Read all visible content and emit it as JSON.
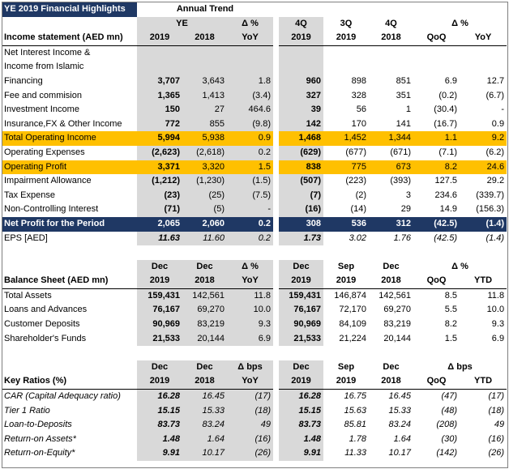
{
  "title": "YE 2019 Financial Highlights",
  "header": {
    "annual_trend": "Annual Trend",
    "ye": "YE",
    "delta_pct": "Δ %",
    "years": {
      "y2019": "2019",
      "y2018": "2018",
      "yoy": "YoY"
    },
    "quarters": {
      "q4": "4Q",
      "q3": "3Q",
      "qoq": "QoQ"
    }
  },
  "income": {
    "heading": "Income statement (AED mn)",
    "nii_line1": "Net Interest Income &",
    "nii_line2": "Income from Islamic",
    "rows": [
      {
        "label": "Financing",
        "ye2019": "3,707",
        "ye2018": "3,643",
        "yoy": "1.8",
        "q4_2019": "960",
        "q3_2019": "898",
        "q4_2018": "851",
        "qoq": "6.9",
        "yoy_q": "12.7"
      },
      {
        "label": "Fee and commision",
        "ye2019": "1,365",
        "ye2018": "1,413",
        "yoy": "(3.4)",
        "q4_2019": "327",
        "q3_2019": "328",
        "q4_2018": "351",
        "qoq": "(0.2)",
        "yoy_q": "(6.7)"
      },
      {
        "label": "Investment Income",
        "ye2019": "150",
        "ye2018": "27",
        "yoy": "464.6",
        "q4_2019": "39",
        "q3_2019": "56",
        "q4_2018": "1",
        "qoq": "(30.4)",
        "yoy_q": "-"
      },
      {
        "label": "Insurance,FX & Other Income",
        "ye2019": "772",
        "ye2018": "855",
        "yoy": "(9.8)",
        "q4_2019": "142",
        "q3_2019": "170",
        "q4_2018": "141",
        "qoq": "(16.7)",
        "yoy_q": "0.9"
      },
      {
        "label": "Total Operating Income",
        "ye2019": "5,994",
        "ye2018": "5,938",
        "yoy": "0.9",
        "q4_2019": "1,468",
        "q3_2019": "1,452",
        "q4_2018": "1,344",
        "qoq": "1.1",
        "yoy_q": "9.2"
      },
      {
        "label": "Operating Expenses",
        "ye2019": "(2,623)",
        "ye2018": "(2,618)",
        "yoy": "0.2",
        "q4_2019": "(629)",
        "q3_2019": "(677)",
        "q4_2018": "(671)",
        "qoq": "(7.1)",
        "yoy_q": "(6.2)"
      },
      {
        "label": "Operating Profit",
        "ye2019": "3,371",
        "ye2018": "3,320",
        "yoy": "1.5",
        "q4_2019": "838",
        "q3_2019": "775",
        "q4_2018": "673",
        "qoq": "8.2",
        "yoy_q": "24.6"
      },
      {
        "label": "Impairment Allowance",
        "ye2019": "(1,212)",
        "ye2018": "(1,230)",
        "yoy": "(1.5)",
        "q4_2019": "(507)",
        "q3_2019": "(223)",
        "q4_2018": "(393)",
        "qoq": "127.5",
        "yoy_q": "29.2"
      },
      {
        "label": "Tax Expense",
        "ye2019": "(23)",
        "ye2018": "(25)",
        "yoy": "(7.5)",
        "q4_2019": "(7)",
        "q3_2019": "(2)",
        "q4_2018": "3",
        "qoq": "234.6",
        "yoy_q": "(339.7)"
      },
      {
        "label": "Non-Controlling Interest",
        "ye2019": "(71)",
        "ye2018": "(5)",
        "yoy": "-",
        "q4_2019": "(16)",
        "q3_2019": "(14)",
        "q4_2018": "29",
        "qoq": "14.9",
        "yoy_q": "(156.3)"
      },
      {
        "label": "Net Profit for the Period",
        "ye2019": "2,065",
        "ye2018": "2,060",
        "yoy": "0.2",
        "q4_2019": "308",
        "q3_2019": "536",
        "q4_2018": "312",
        "qoq": "(42.5)",
        "yoy_q": "(1.4)"
      },
      {
        "label": "EPS [AED]",
        "ye2019": "11.63",
        "ye2018": "11.60",
        "yoy": "0.2",
        "q4_2019": "1.73",
        "q3_2019": "3.02",
        "q4_2018": "1.76",
        "qoq": "(42.5)",
        "yoy_q": "(1.4)"
      }
    ]
  },
  "balance": {
    "heading": "Balance Sheet (AED mn)",
    "h_dec": "Dec",
    "h_sep": "Sep",
    "h_delta": "Δ %",
    "h_2019": "2019",
    "h_2018": "2018",
    "h_yoy": "YoY",
    "h_qoq": "QoQ",
    "h_ytd": "YTD",
    "rows": [
      {
        "label": "Total Assets",
        "c1": "159,431",
        "c2": "142,561",
        "c3": "11.8",
        "c4": "159,431",
        "c5": "146,874",
        "c6": "142,561",
        "c7": "8.5",
        "c8": "11.8"
      },
      {
        "label": "Loans and Advances",
        "c1": "76,167",
        "c2": "69,270",
        "c3": "10.0",
        "c4": "76,167",
        "c5": "72,170",
        "c6": "69,270",
        "c7": "5.5",
        "c8": "10.0"
      },
      {
        "label": "Customer Deposits",
        "c1": "90,969",
        "c2": "83,219",
        "c3": "9.3",
        "c4": "90,969",
        "c5": "84,109",
        "c6": "83,219",
        "c7": "8.2",
        "c8": "9.3"
      },
      {
        "label": "Shareholder's Funds",
        "c1": "21,533",
        "c2": "20,144",
        "c3": "6.9",
        "c4": "21,533",
        "c5": "21,224",
        "c6": "20,144",
        "c7": "1.5",
        "c8": "6.9"
      }
    ]
  },
  "ratios": {
    "heading": "Key Ratios (%)",
    "h_bps": "Δ bps",
    "rows": [
      {
        "label": "CAR (Capital Adequacy ratio)",
        "c1": "16.28",
        "c2": "16.45",
        "c3": "(17)",
        "c4": "16.28",
        "c5": "16.75",
        "c6": "16.45",
        "c7": "(47)",
        "c8": "(17)"
      },
      {
        "label": "Tier 1 Ratio",
        "c1": "15.15",
        "c2": "15.33",
        "c3": "(18)",
        "c4": "15.15",
        "c5": "15.63",
        "c6": "15.33",
        "c7": "(48)",
        "c8": "(18)"
      },
      {
        "label": "Loan-to-Deposits",
        "c1": "83.73",
        "c2": "83.24",
        "c3": "49",
        "c4": "83.73",
        "c5": "85.81",
        "c6": "83.24",
        "c7": "(208)",
        "c8": "49"
      },
      {
        "label": "Return-on Assets*",
        "c1": "1.48",
        "c2": "1.64",
        "c3": "(16)",
        "c4": "1.48",
        "c5": "1.78",
        "c6": "1.64",
        "c7": "(30)",
        "c8": "(16)"
      },
      {
        "label": "Return-on-Equity*",
        "c1": "9.91",
        "c2": "10.17",
        "c3": "(26)",
        "c4": "9.91",
        "c5": "11.33",
        "c6": "10.17",
        "c7": "(142)",
        "c8": "(26)"
      }
    ]
  }
}
